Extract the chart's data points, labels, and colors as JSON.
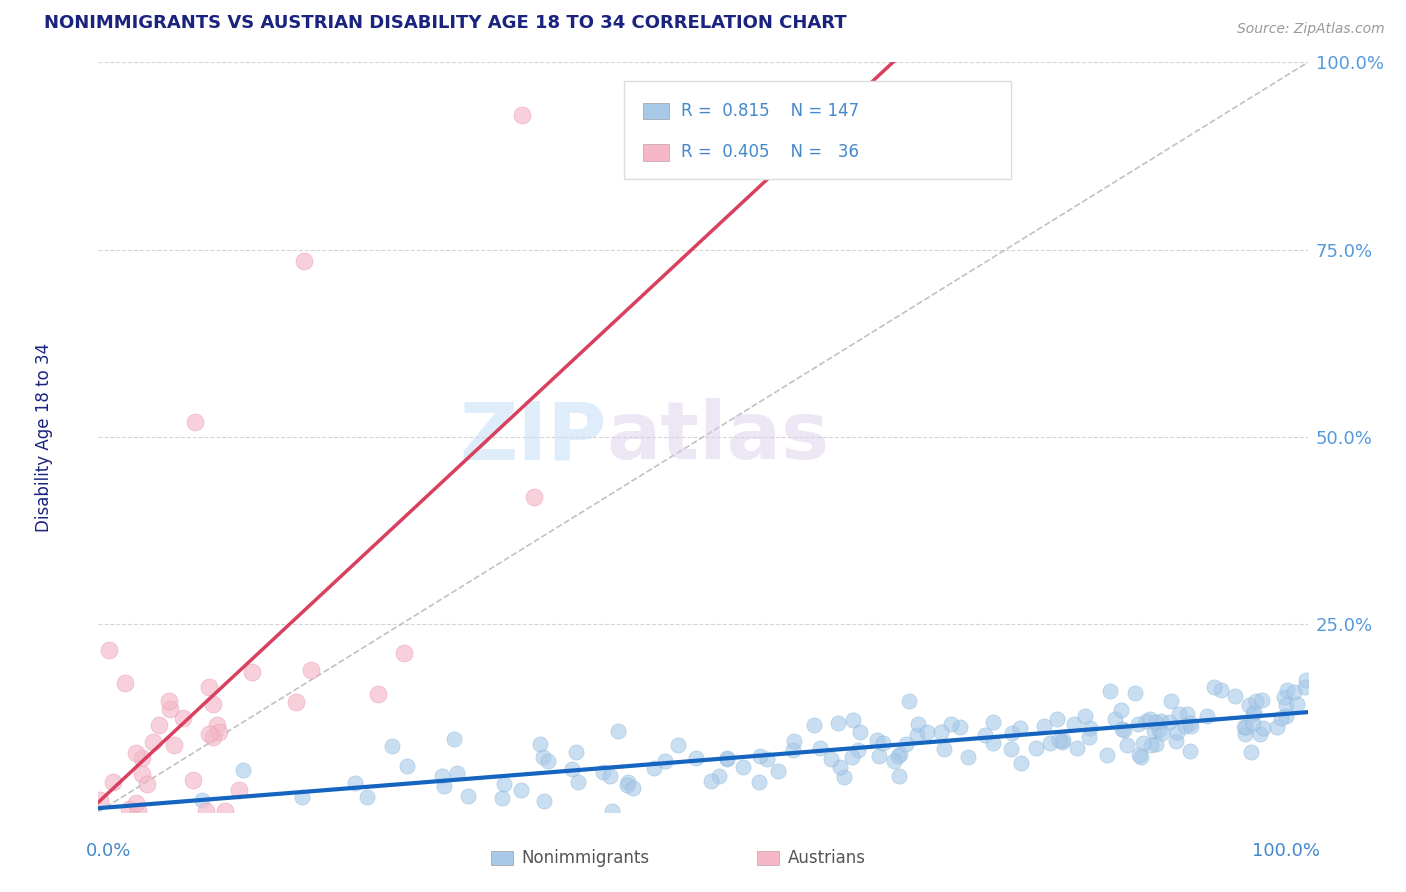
{
  "title": "NONIMMIGRANTS VS AUSTRIAN DISABILITY AGE 18 TO 34 CORRELATION CHART",
  "source": "Source: ZipAtlas.com",
  "ylabel": "Disability Age 18 to 34",
  "watermark_zip": "ZIP",
  "watermark_atlas": "atlas",
  "legend_blue_R": "0.815",
  "legend_blue_N": "147",
  "legend_pink_R": "0.405",
  "legend_pink_N": "36",
  "nonimmigrant_color": "#a8c8e8",
  "nonimmigrant_edge_color": "#7aaed4",
  "austrian_color": "#f4b8c8",
  "austrian_edge_color": "#e090a8",
  "nonimmigrant_line_color": "#1565c0",
  "austrian_line_color": "#d94060",
  "diag_line_color": "#bbbbbb",
  "background_color": "#ffffff",
  "grid_color": "#cccccc",
  "title_color": "#1a237e",
  "axis_label_color": "#4488cc",
  "right_tick_color": "#5599dd",
  "blue_N": 147,
  "pink_N": 36,
  "blue_R": 0.815,
  "pink_R": 0.405
}
